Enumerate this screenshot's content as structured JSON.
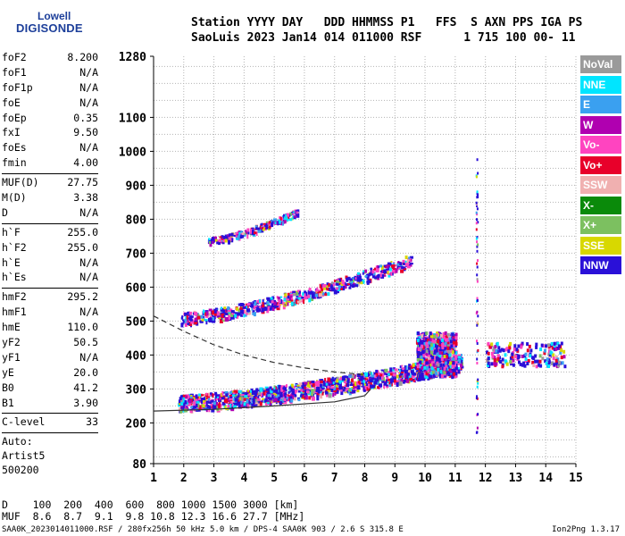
{
  "logo": {
    "line1": "Lowell",
    "line2": "DIGISONDE"
  },
  "header": {
    "labels": "Station YYYY DAY   DDD HHMMSS P1   FFS  S AXN PPS IGA PS",
    "values": "SaoLuis 2023 Jan14 014 011000 RSF      1 715 100 00- 11"
  },
  "params": {
    "group1": [
      {
        "name": "foF2",
        "value": "8.200"
      },
      {
        "name": "foF1",
        "value": "N/A"
      },
      {
        "name": "foF1p",
        "value": "N/A"
      },
      {
        "name": "foE",
        "value": "N/A"
      },
      {
        "name": "foEp",
        "value": "0.35"
      },
      {
        "name": "fxI",
        "value": "9.50"
      },
      {
        "name": "foEs",
        "value": "N/A"
      },
      {
        "name": "fmin",
        "value": "4.00"
      }
    ],
    "group2": [
      {
        "name": "MUF(D)",
        "value": "27.75"
      },
      {
        "name": "M(D)",
        "value": "3.38"
      },
      {
        "name": "D",
        "value": "N/A"
      }
    ],
    "group3": [
      {
        "name": "h`F",
        "value": "255.0"
      },
      {
        "name": "h`F2",
        "value": "255.0"
      },
      {
        "name": "h`E",
        "value": "N/A"
      },
      {
        "name": "h`Es",
        "value": "N/A"
      }
    ],
    "group4": [
      {
        "name": "hmF2",
        "value": "295.2"
      },
      {
        "name": "hmF1",
        "value": "N/A"
      },
      {
        "name": "hmE",
        "value": "110.0"
      },
      {
        "name": "yF2",
        "value": "50.5"
      },
      {
        "name": "yF1",
        "value": "N/A"
      },
      {
        "name": "yE",
        "value": "20.0"
      },
      {
        "name": "B0",
        "value": "41.2"
      },
      {
        "name": "B1",
        "value": "3.90"
      }
    ],
    "group5": [
      {
        "name": "C-level",
        "value": "33"
      }
    ],
    "auto": [
      "Auto:",
      "Artist5",
      "500200"
    ]
  },
  "legend": [
    {
      "label": "NoVal",
      "color": "#9a9a9a"
    },
    {
      "label": "NNE",
      "color": "#00e5ff"
    },
    {
      "label": "E",
      "color": "#3aa0f0"
    },
    {
      "label": "W",
      "color": "#b000b0"
    },
    {
      "label": "Vo-",
      "color": "#ff44c0"
    },
    {
      "label": "Vo+",
      "color": "#e8002a"
    },
    {
      "label": "SSW",
      "color": "#f0b0b0"
    },
    {
      "label": "X-",
      "color": "#0a8a0a"
    },
    {
      "label": "X+",
      "color": "#7cc060"
    },
    {
      "label": "SSE",
      "color": "#d8d800"
    },
    {
      "label": "NNW",
      "color": "#2a10d8"
    }
  ],
  "footer": {
    "d_row": "D    100  200  400  600  800 1000 1500 3000 [km]",
    "muf_row": "MUF  8.6  8.7  9.1  9.8 10.8 12.3 16.6 27.7 [MHz]",
    "file_info": "SAA0K_2023014011000.RSF / 280fx256h 50 kHz 5.0 km / DPS-4 SAA0K 903 / 2.6 S 315.8 E",
    "version": "Ion2Png 1.3.17"
  },
  "chart_data": {
    "type": "scatter",
    "title": "",
    "xlabel": "",
    "ylabel": "",
    "xlim": [
      1,
      15
    ],
    "ylim": [
      80,
      1280
    ],
    "x_ticks": [
      "1",
      "2",
      "3",
      "4",
      "5",
      "6",
      "7",
      "8",
      "9",
      "10",
      "11",
      "12",
      "13",
      "14",
      "15"
    ],
    "y_ticks": [
      {
        "value": 80,
        "label": "80"
      },
      {
        "value": 200,
        "label": "200"
      },
      {
        "value": 300,
        "label": "300"
      },
      {
        "value": 400,
        "label": "400"
      },
      {
        "value": 500,
        "label": "500"
      },
      {
        "value": 600,
        "label": "600"
      },
      {
        "value": 700,
        "label": "700"
      },
      {
        "value": 800,
        "label": "800"
      },
      {
        "value": 900,
        "label": "900"
      },
      {
        "value": 1000,
        "label": "1000"
      },
      {
        "value": 1100,
        "label": "1100"
      },
      {
        "value": 1280,
        "label": "1280"
      }
    ],
    "grid": true,
    "series": [
      {
        "kind": "echo-band",
        "x_range": [
          1.8,
          11.2
        ],
        "y_start": 260,
        "y_end": 380,
        "spread": 25,
        "density": 1400
      },
      {
        "kind": "echo-band",
        "x_range": [
          1.9,
          9.5
        ],
        "y_start": 510,
        "y_end": 680,
        "spread": 18,
        "density": 650
      },
      {
        "kind": "echo-band",
        "x_range": [
          2.8,
          5.8
        ],
        "y_start": 738,
        "y_end": 825,
        "spread": 10,
        "density": 220
      },
      {
        "kind": "echo-cluster",
        "x_range": [
          9.7,
          11.0
        ],
        "y_range": [
          340,
          470
        ],
        "density": 700
      },
      {
        "kind": "echo-cluster",
        "x_range": [
          12.0,
          14.6
        ],
        "y_range": [
          370,
          440
        ],
        "density": 180
      },
      {
        "kind": "echo-vertical",
        "x": 11.7,
        "y_range": [
          150,
          980
        ],
        "density": 60
      }
    ],
    "profile_solid": [
      [
        1,
        235
      ],
      [
        3,
        240
      ],
      [
        5,
        250
      ],
      [
        7,
        262
      ],
      [
        8,
        280
      ],
      [
        8.2,
        300
      ]
    ],
    "profile_dashed": [
      [
        1,
        515
      ],
      [
        2,
        470
      ],
      [
        3,
        430
      ],
      [
        4,
        400
      ],
      [
        5,
        378
      ],
      [
        6,
        362
      ],
      [
        7,
        350
      ],
      [
        8,
        342
      ]
    ]
  }
}
